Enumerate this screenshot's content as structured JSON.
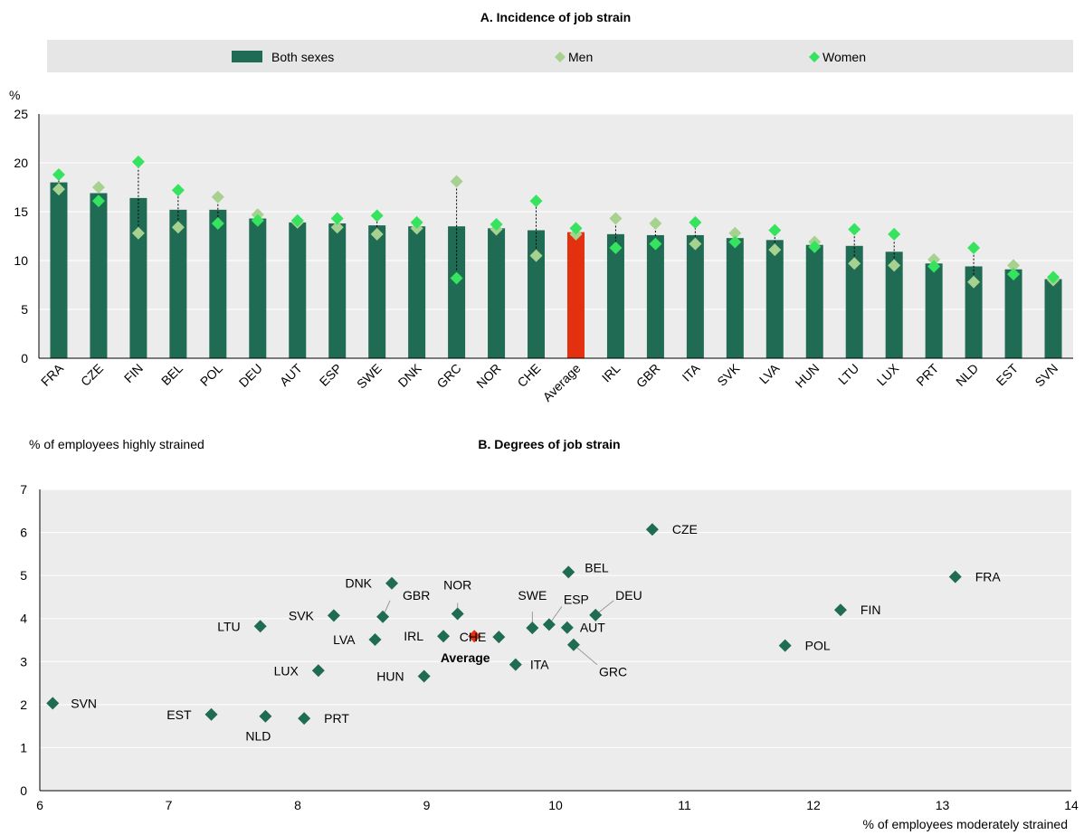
{
  "colors": {
    "both": "#1f6b53",
    "men": "#a6d18f",
    "women": "#35e35e",
    "average": "#e3300e",
    "panel_bg": "#ececec",
    "legend_bg": "#e6e6e6"
  },
  "chart_data": [
    {
      "type": "bar",
      "title": "A. Incidence of job strain",
      "yunit": "%",
      "ylim": [
        0,
        25
      ],
      "yticks": [
        0,
        5,
        10,
        15,
        20,
        25
      ],
      "legend": {
        "both": "Both sexes",
        "men": "Men",
        "women": "Women"
      },
      "categories": [
        "FRA",
        "CZE",
        "FIN",
        "BEL",
        "POL",
        "DEU",
        "AUT",
        "ESP",
        "SWE",
        "DNK",
        "GRC",
        "NOR",
        "CHE",
        "Average",
        "IRL",
        "GBR",
        "ITA",
        "SVK",
        "LVA",
        "HUN",
        "LTU",
        "LUX",
        "PRT",
        "NLD",
        "EST",
        "SVN"
      ],
      "series": [
        {
          "name": "Both sexes",
          "values": [
            18.0,
            16.9,
            16.4,
            15.2,
            15.2,
            14.3,
            13.9,
            13.8,
            13.6,
            13.5,
            13.5,
            13.3,
            13.1,
            12.9,
            12.7,
            12.6,
            12.6,
            12.3,
            12.1,
            11.6,
            11.5,
            10.9,
            9.7,
            9.4,
            9.1,
            8.1
          ]
        },
        {
          "name": "Men",
          "values": [
            17.3,
            17.5,
            12.8,
            13.4,
            16.5,
            14.7,
            13.9,
            13.4,
            12.7,
            13.3,
            18.1,
            13.2,
            10.5,
            12.7,
            14.3,
            13.8,
            11.7,
            12.8,
            11.1,
            11.9,
            9.7,
            9.5,
            10.1,
            7.8,
            9.5,
            8.0
          ]
        },
        {
          "name": "Women",
          "values": [
            18.8,
            16.1,
            20.1,
            17.2,
            13.8,
            14.1,
            14.1,
            14.3,
            14.6,
            13.9,
            8.2,
            13.7,
            16.1,
            13.3,
            11.3,
            11.7,
            13.9,
            11.9,
            13.1,
            11.4,
            13.2,
            12.7,
            9.4,
            11.3,
            8.6,
            8.3
          ]
        }
      ],
      "average_category": "Average"
    },
    {
      "type": "scatter",
      "title": "B. Degrees of job strain",
      "ylabel": "% of employees highly strained",
      "xlabel": "% of employees moderately strained",
      "xlim": [
        6,
        14
      ],
      "ylim": [
        0,
        7
      ],
      "xticks": [
        6,
        7,
        8,
        9,
        10,
        11,
        12,
        13,
        14
      ],
      "yticks": [
        0,
        1,
        2,
        3,
        4,
        5,
        6,
        7
      ],
      "points": [
        {
          "label": "SVN",
          "x": 6.1,
          "y": 2.03
        },
        {
          "label": "EST",
          "x": 7.33,
          "y": 1.77
        },
        {
          "label": "NLD",
          "x": 7.75,
          "y": 1.73
        },
        {
          "label": "PRT",
          "x": 8.05,
          "y": 1.68
        },
        {
          "label": "LUX",
          "x": 8.16,
          "y": 2.79
        },
        {
          "label": "LTU",
          "x": 7.71,
          "y": 3.82
        },
        {
          "label": "SVK",
          "x": 8.28,
          "y": 4.07
        },
        {
          "label": "LVA",
          "x": 8.6,
          "y": 3.51
        },
        {
          "label": "GBR",
          "x": 8.66,
          "y": 4.04
        },
        {
          "label": "DNK",
          "x": 8.73,
          "y": 4.82
        },
        {
          "label": "IRL",
          "x": 9.13,
          "y": 3.59
        },
        {
          "label": "HUN",
          "x": 8.98,
          "y": 2.66
        },
        {
          "label": "NOR",
          "x": 9.24,
          "y": 4.11
        },
        {
          "label": "Average",
          "x": 9.37,
          "y": 3.59,
          "highlight": true
        },
        {
          "label": "CHE",
          "x": 9.56,
          "y": 3.57
        },
        {
          "label": "ITA",
          "x": 9.69,
          "y": 2.93
        },
        {
          "label": "SWE",
          "x": 9.82,
          "y": 3.78
        },
        {
          "label": "ESP",
          "x": 9.95,
          "y": 3.86
        },
        {
          "label": "AUT",
          "x": 10.09,
          "y": 3.79
        },
        {
          "label": "BEL",
          "x": 10.1,
          "y": 5.08
        },
        {
          "label": "GRC",
          "x": 10.14,
          "y": 3.39
        },
        {
          "label": "DEU",
          "x": 10.31,
          "y": 4.08
        },
        {
          "label": "CZE",
          "x": 10.75,
          "y": 6.07
        },
        {
          "label": "POL",
          "x": 11.78,
          "y": 3.37
        },
        {
          "label": "FIN",
          "x": 12.21,
          "y": 4.2
        },
        {
          "label": "FRA",
          "x": 13.1,
          "y": 4.97
        }
      ]
    }
  ]
}
